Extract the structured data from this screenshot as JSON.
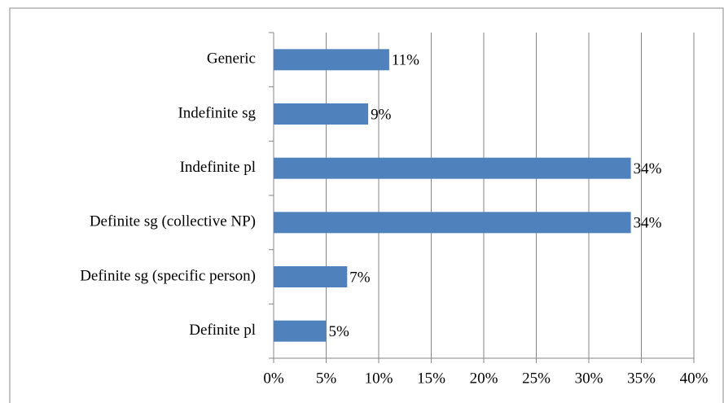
{
  "chart_data": {
    "type": "bar",
    "orientation": "horizontal",
    "categories": [
      "Generic",
      "Indefinite sg",
      "Indefinite pl",
      "Definite sg (collective NP)",
      "Definite sg (specific person)",
      "Definite pl"
    ],
    "values": [
      11,
      9,
      34,
      34,
      7,
      5
    ],
    "value_labels": [
      "11%",
      "9%",
      "34%",
      "34%",
      "7%",
      "5%"
    ],
    "color": "#4f81bd",
    "xlim": [
      0,
      40
    ],
    "xticks": [
      {
        "value": 0,
        "label": "0%"
      },
      {
        "value": 5,
        "label": "5%"
      },
      {
        "value": 10,
        "label": "10%"
      },
      {
        "value": 15,
        "label": "15%"
      },
      {
        "value": 20,
        "label": "20%"
      },
      {
        "value": 25,
        "label": "25%"
      },
      {
        "value": 30,
        "label": "30%"
      },
      {
        "value": 35,
        "label": "35%"
      },
      {
        "value": 40,
        "label": "40%"
      }
    ],
    "grid": true
  }
}
